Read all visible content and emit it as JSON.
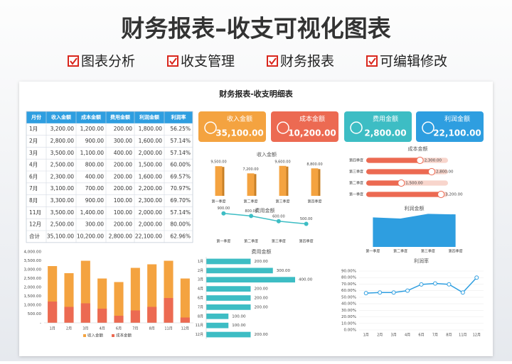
{
  "header": {
    "title": "财务报表–收支可视化图表",
    "tags": [
      "图表分析",
      "收支管理",
      "财务报表",
      "可编辑修改"
    ]
  },
  "panel_title": "财务报表-收支明细表",
  "table": {
    "columns": [
      "月份",
      "收入金额",
      "成本金额",
      "费用金额",
      "利润金额",
      "利润率"
    ],
    "rows": [
      [
        "1月",
        "3,200.00",
        "1,200.00",
        "200.00",
        "1,800.00",
        "56.25%"
      ],
      [
        "2月",
        "2,800.00",
        "900.00",
        "300.00",
        "1,600.00",
        "57.14%"
      ],
      [
        "3月",
        "3,500.00",
        "1,100.00",
        "400.00",
        "2,000.00",
        "57.14%"
      ],
      [
        "4月",
        "2,500.00",
        "800.00",
        "200.00",
        "1,500.00",
        "60.00%"
      ],
      [
        "6月",
        "2,300.00",
        "400.00",
        "200.00",
        "1,600.00",
        "69.57%"
      ],
      [
        "7月",
        "3,100.00",
        "700.00",
        "200.00",
        "2,200.00",
        "70.97%"
      ],
      [
        "8月",
        "3,300.00",
        "900.00",
        "100.00",
        "2,300.00",
        "69.70%"
      ],
      [
        "11月",
        "3,500.00",
        "1,400.00",
        "100.00",
        "2,000.00",
        "57.14%"
      ],
      [
        "12月",
        "2,500.00",
        "300.00",
        "200.00",
        "2,000.00",
        "80.00%"
      ],
      [
        "合计",
        "35,100.00",
        "10,200.00",
        "2,800.00",
        "22,100.00",
        "62.96%"
      ]
    ]
  },
  "kpis": [
    {
      "label": "收入金额",
      "value": "35,100.00",
      "color": "#f4a340"
    },
    {
      "label": "成本金额",
      "value": "10,200.00",
      "color": "#ec6a52"
    },
    {
      "label": "费用金额",
      "value": "2,800.00",
      "color": "#3dbdc4"
    },
    {
      "label": "利润金额",
      "value": "22,100.00",
      "color": "#2e9ee0"
    }
  ],
  "chart_data": [
    {
      "type": "bar",
      "title": "收入金额",
      "categories": [
        "第一季度",
        "第二季度",
        "第三季度",
        "第四季度"
      ],
      "values": [
        9500,
        7200,
        9600,
        8800
      ],
      "value_labels": [
        "9,500.00",
        "7,200.00",
        "9,600.00",
        "8,800.00"
      ],
      "color": "#f4a340",
      "ylim": [
        0,
        10000
      ]
    },
    {
      "type": "hbar",
      "title": "成本金额",
      "categories": [
        "第四季度",
        "第三季度",
        "第二季度",
        "第一季度"
      ],
      "values": [
        2300,
        2800,
        1500,
        3200
      ],
      "value_labels": [
        "2,300.00",
        "2,800.00",
        "1,500.00",
        "3,200.00"
      ],
      "color": "#ec6a52",
      "track": "#f8d5cc",
      "xlim": [
        0,
        3500
      ]
    },
    {
      "type": "line",
      "title": "费用金额",
      "categories": [
        "第一季度",
        "第二季度",
        "第三季度",
        "第四季度"
      ],
      "values": [
        900,
        800,
        600,
        500
      ],
      "value_labels": [
        "900.00",
        "800.00",
        "600.00",
        "500.00"
      ],
      "color": "#3dbdc4",
      "ylim": [
        0,
        1000
      ]
    },
    {
      "type": "area",
      "title": "利润金额",
      "categories": [
        "第一季度",
        "第二季度",
        "第三季度",
        "第四季度"
      ],
      "values": [
        5000,
        4800,
        5600,
        5500
      ],
      "color": "#2e9ee0",
      "ylim": [
        0,
        6000
      ]
    },
    {
      "type": "bar",
      "categories": [
        "1月",
        "2月",
        "3月",
        "4月",
        "6月",
        "7月",
        "8月",
        "11月",
        "12月"
      ],
      "series": [
        {
          "name": "收入金额",
          "color": "#f4a340",
          "values": [
            3200,
            2800,
            3500,
            2500,
            2300,
            3100,
            3300,
            3500,
            2500
          ]
        },
        {
          "name": "成本金额",
          "color": "#ec6a52",
          "values": [
            1200,
            900,
            1100,
            800,
            400,
            700,
            900,
            1400,
            300
          ]
        }
      ],
      "ylim": [
        0,
        4000
      ],
      "yticks": [
        {
          "value": 0,
          "label": "-"
        },
        {
          "value": 500,
          "label": "500.00"
        },
        {
          "value": 1000,
          "label": "1,000.00"
        },
        {
          "value": 1500,
          "label": "1,500.00"
        },
        {
          "value": 2000,
          "label": "2,000.00"
        },
        {
          "value": 2500,
          "label": "2,500.00"
        },
        {
          "value": 3000,
          "label": "3,000.00"
        },
        {
          "value": 3500,
          "label": "3,500.00"
        },
        {
          "value": 4000,
          "label": "4,000.00"
        }
      ]
    },
    {
      "type": "hbar",
      "title": "费用金额",
      "categories": [
        "1月",
        "2月",
        "3月",
        "4月",
        "6月",
        "7月",
        "8月",
        "11月",
        "12月"
      ],
      "values": [
        200,
        300,
        400,
        200,
        200,
        200,
        100,
        100,
        200
      ],
      "value_labels": [
        "200.00",
        "300.00",
        "400.00",
        "200.00",
        "200.00",
        "200.00",
        "100.00",
        "100.00",
        "200.00"
      ],
      "color": "#3dbdc4",
      "xlim": [
        0,
        400
      ]
    },
    {
      "type": "line",
      "title": "利润率",
      "categories": [
        "1月",
        "2月",
        "3月",
        "4月",
        "6月",
        "7月",
        "8月",
        "11月",
        "12月"
      ],
      "values": [
        56.25,
        57.14,
        57.14,
        60.0,
        69.57,
        70.97,
        69.7,
        57.14,
        80.0
      ],
      "color": "#2e9ee0",
      "ylim": [
        0,
        90
      ],
      "grid": true,
      "yticks": [
        {
          "value": 0,
          "label": "0.00%"
        },
        {
          "value": 10,
          "label": "10.00%"
        },
        {
          "value": 20,
          "label": "20.00%"
        },
        {
          "value": 30,
          "label": "30.00%"
        },
        {
          "value": 40,
          "label": "40.00%"
        },
        {
          "value": 50,
          "label": "50.00%"
        },
        {
          "value": 60,
          "label": "60.00%"
        },
        {
          "value": 70,
          "label": "70.00%"
        },
        {
          "value": 80,
          "label": "80.00%"
        },
        {
          "value": 90,
          "label": "90.00%"
        }
      ]
    }
  ]
}
